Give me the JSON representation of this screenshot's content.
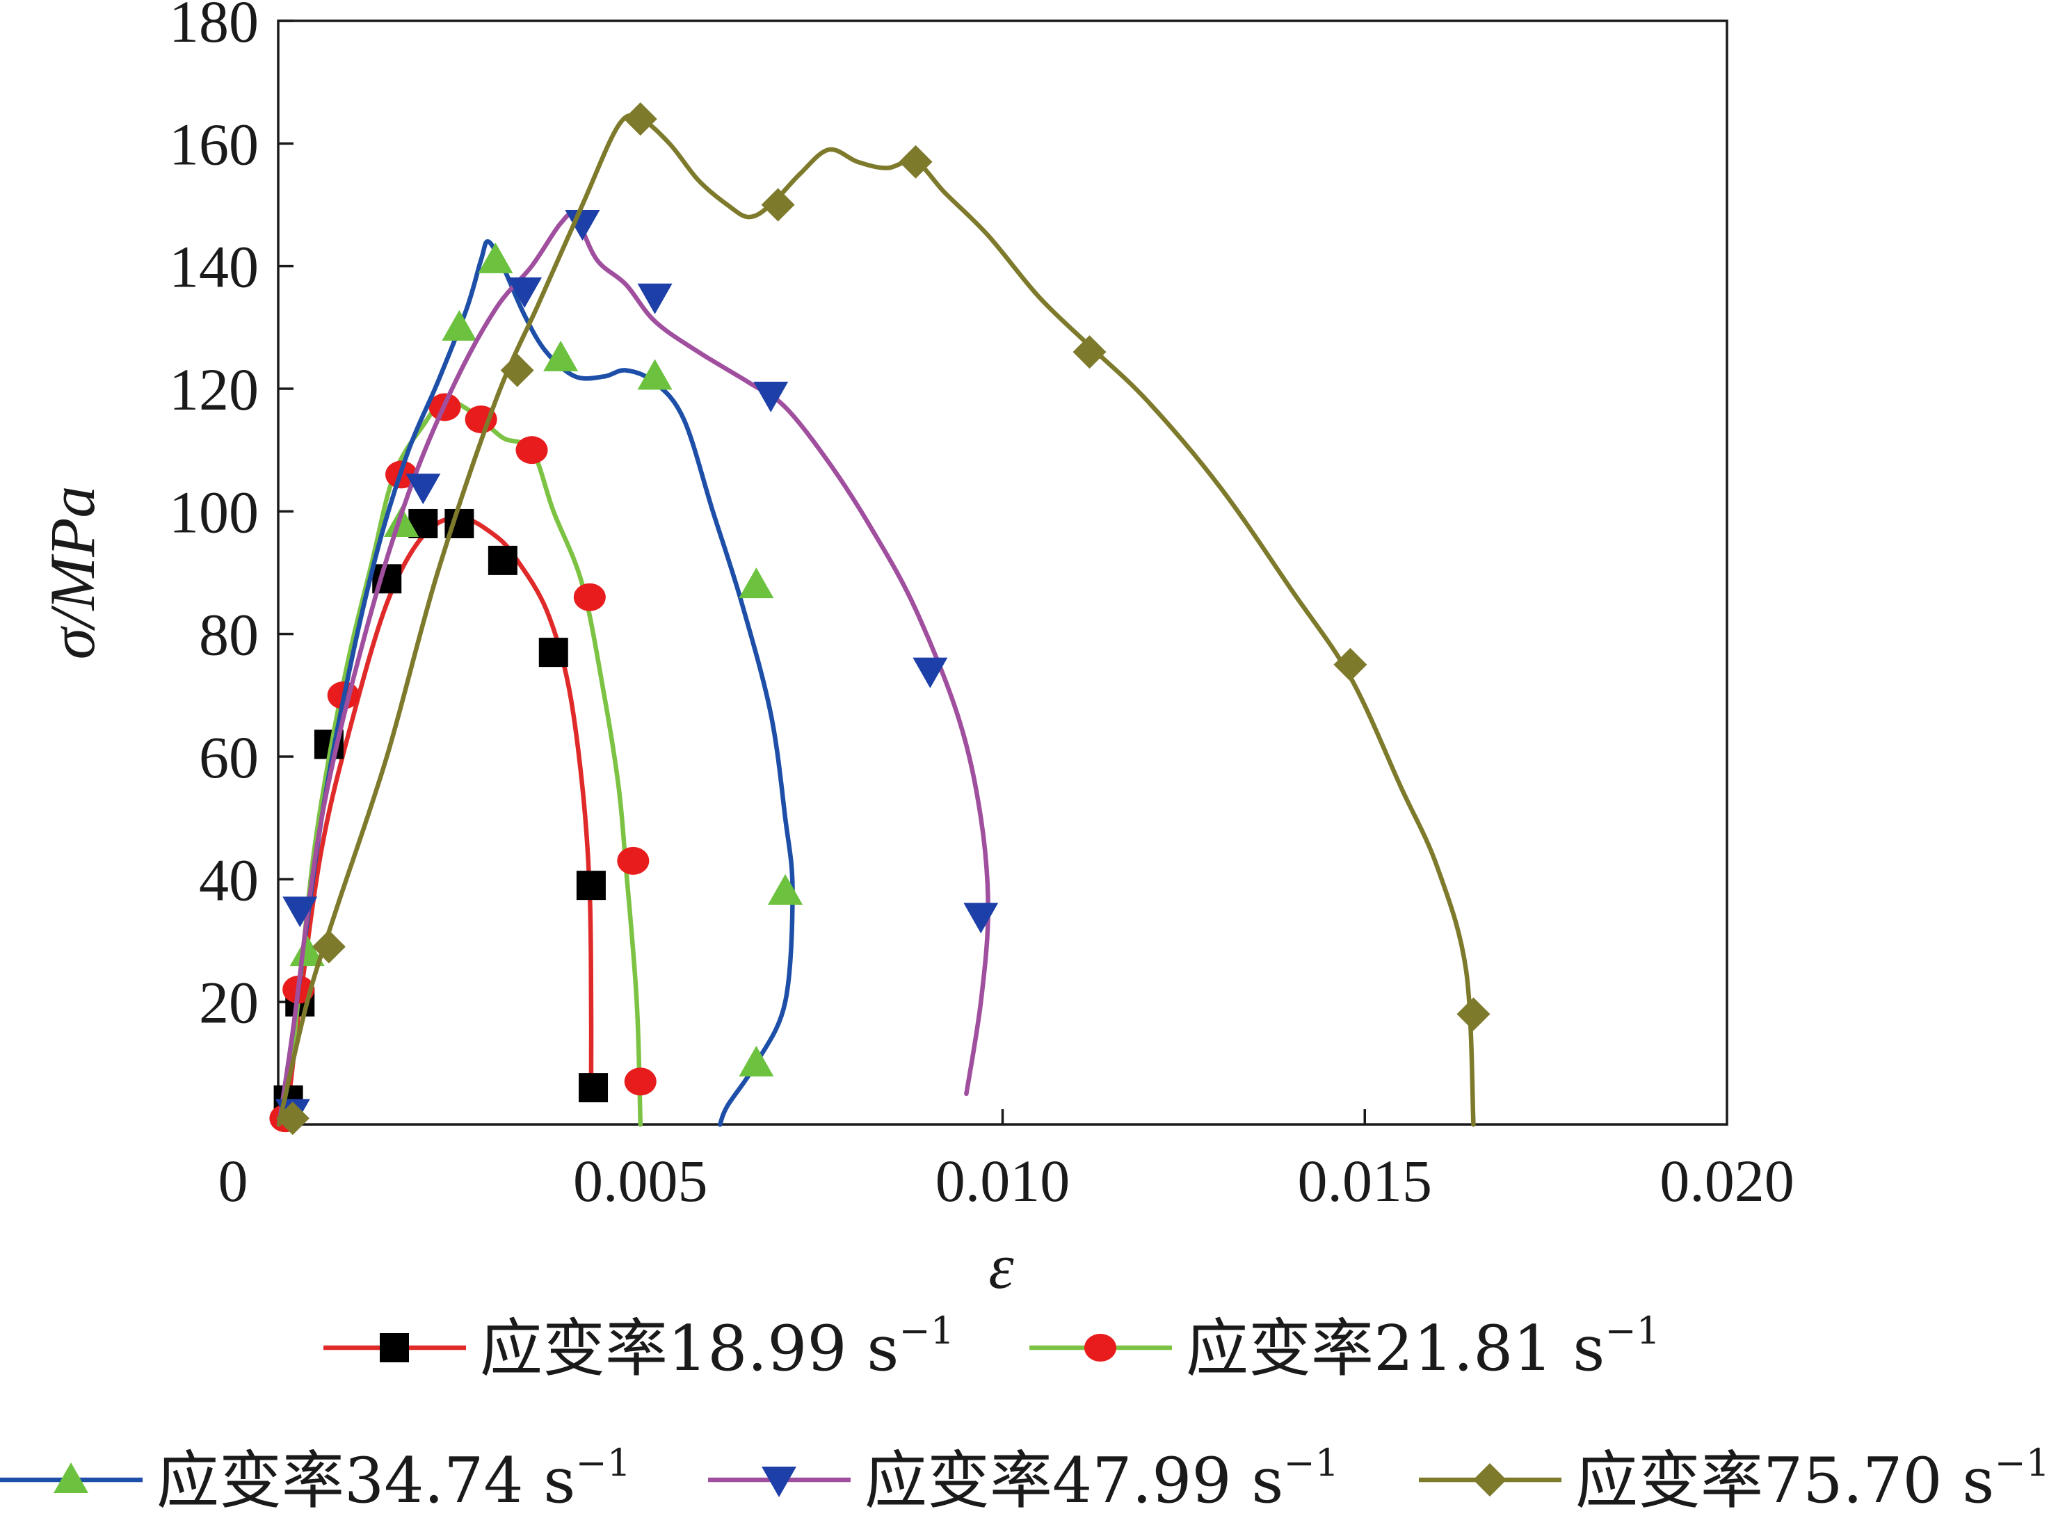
{
  "chart_data": {
    "type": "line",
    "title": "",
    "xlabel": "ε",
    "ylabel": "σ/MPa",
    "xlim": [
      0,
      0.02
    ],
    "ylim": [
      0,
      180
    ],
    "x_ticks": [
      {
        "value": 0,
        "label": "0"
      },
      {
        "value": 0.005,
        "label": "0.005"
      },
      {
        "value": 0.01,
        "label": "0.010"
      },
      {
        "value": 0.015,
        "label": "0.015"
      },
      {
        "value": 0.02,
        "label": "0.020"
      }
    ],
    "y_ticks": [
      {
        "value": 20,
        "label": "20"
      },
      {
        "value": 40,
        "label": "40"
      },
      {
        "value": 60,
        "label": "60"
      },
      {
        "value": 80,
        "label": "80"
      },
      {
        "value": 100,
        "label": "100"
      },
      {
        "value": 120,
        "label": "120"
      },
      {
        "value": 140,
        "label": "140"
      },
      {
        "value": 160,
        "label": "160"
      },
      {
        "value": 180,
        "label": "180"
      }
    ],
    "grid": false,
    "legend_position": "bottom",
    "series": [
      {
        "name": "应变率18.99 s⁻¹",
        "label_main": "应变率18.99 s",
        "label_sup": "−1",
        "line_color": "#e02a2a",
        "marker": "square",
        "marker_color": "#000000",
        "curve": [
          [
            1e-05,
            0
          ],
          [
            0.00015,
            5
          ],
          [
            0.0003,
            20
          ],
          [
            0.0006,
            45
          ],
          [
            0.001,
            65
          ],
          [
            0.0015,
            85
          ],
          [
            0.002,
            96
          ],
          [
            0.0025,
            99
          ],
          [
            0.003,
            96
          ],
          [
            0.0033,
            92
          ],
          [
            0.0037,
            84
          ],
          [
            0.004,
            72
          ],
          [
            0.0042,
            55
          ],
          [
            0.0043,
            38
          ],
          [
            0.00432,
            20
          ],
          [
            0.00432,
            5
          ]
        ],
        "markers": [
          [
            0.00014,
            4
          ],
          [
            0.0003,
            20
          ],
          [
            0.0007,
            62
          ],
          [
            0.0015,
            89
          ],
          [
            0.002,
            98
          ],
          [
            0.0025,
            98
          ],
          [
            0.0031,
            92
          ],
          [
            0.0038,
            77
          ],
          [
            0.00432,
            39
          ],
          [
            0.00435,
            6
          ]
        ]
      },
      {
        "name": "应变率21.81 s⁻¹",
        "label_main": "应变率21.81 s",
        "label_sup": "−1",
        "line_color": "#7cc243",
        "marker": "circle",
        "marker_color": "#e81c1c",
        "curve": [
          [
            1e-05,
            0
          ],
          [
            0.0002,
            12
          ],
          [
            0.0005,
            45
          ],
          [
            0.0009,
            72
          ],
          [
            0.0013,
            92
          ],
          [
            0.0016,
            106
          ],
          [
            0.002,
            114
          ],
          [
            0.0023,
            118
          ],
          [
            0.0027,
            116
          ],
          [
            0.0031,
            112
          ],
          [
            0.0035,
            110
          ],
          [
            0.0038,
            100
          ],
          [
            0.0042,
            88
          ],
          [
            0.0045,
            70
          ],
          [
            0.0047,
            55
          ],
          [
            0.0048,
            42
          ],
          [
            0.00495,
            20
          ],
          [
            0.005,
            0
          ]
        ],
        "markers": [
          [
            0.0001,
            1
          ],
          [
            0.00028,
            22
          ],
          [
            0.0009,
            70
          ],
          [
            0.0017,
            106
          ],
          [
            0.0023,
            117
          ],
          [
            0.0028,
            115
          ],
          [
            0.0035,
            110
          ],
          [
            0.0043,
            86
          ],
          [
            0.0049,
            43
          ],
          [
            0.005,
            7
          ]
        ]
      },
      {
        "name": "应变率34.74 s⁻¹",
        "label_main": "应变率34.74 s",
        "label_sup": "−1",
        "line_color": "#1e4fa8",
        "marker": "triangle-up",
        "marker_color": "#6cc23e",
        "curve": [
          [
            1e-05,
            0
          ],
          [
            0.0002,
            15
          ],
          [
            0.0006,
            50
          ],
          [
            0.001,
            75
          ],
          [
            0.0014,
            95
          ],
          [
            0.0018,
            110
          ],
          [
            0.0022,
            121
          ],
          [
            0.0026,
            133
          ],
          [
            0.0028,
            141
          ],
          [
            0.0029,
            144
          ],
          [
            0.0031,
            140
          ],
          [
            0.0034,
            132
          ],
          [
            0.0037,
            126
          ],
          [
            0.0041,
            122
          ],
          [
            0.0045,
            122
          ],
          [
            0.0048,
            123
          ],
          [
            0.0052,
            121
          ],
          [
            0.0056,
            115
          ],
          [
            0.006,
            100
          ],
          [
            0.0064,
            85
          ],
          [
            0.0068,
            67
          ],
          [
            0.007,
            50
          ],
          [
            0.0071,
            38
          ],
          [
            0.007,
            20
          ],
          [
            0.0066,
            10
          ],
          [
            0.0062,
            3
          ],
          [
            0.0061,
            0
          ]
        ],
        "markers": [
          [
            0.0004,
            28
          ],
          [
            0.0017,
            98
          ],
          [
            0.0025,
            130
          ],
          [
            0.003,
            141
          ],
          [
            0.0039,
            125
          ],
          [
            0.0052,
            122
          ],
          [
            0.0066,
            88
          ],
          [
            0.007,
            38
          ],
          [
            0.0066,
            10
          ]
        ]
      },
      {
        "name": "应变率47.99 s⁻¹",
        "label_main": "应变率47.99 s",
        "label_sup": "−1",
        "line_color": "#a04f9e",
        "marker": "triangle-down",
        "marker_color": "#1d3fa8",
        "curve": [
          [
            1e-05,
            0
          ],
          [
            0.0002,
            15
          ],
          [
            0.0006,
            50
          ],
          [
            0.0012,
            80
          ],
          [
            0.0018,
            103
          ],
          [
            0.0024,
            120
          ],
          [
            0.003,
            133
          ],
          [
            0.0035,
            140
          ],
          [
            0.0039,
            147
          ],
          [
            0.0041,
            148
          ],
          [
            0.0044,
            141
          ],
          [
            0.0048,
            137
          ],
          [
            0.0052,
            131
          ],
          [
            0.0058,
            126
          ],
          [
            0.0065,
            121
          ],
          [
            0.007,
            117
          ],
          [
            0.0076,
            108
          ],
          [
            0.0082,
            97
          ],
          [
            0.0088,
            84
          ],
          [
            0.0094,
            66
          ],
          [
            0.0097,
            50
          ],
          [
            0.0098,
            35
          ],
          [
            0.0097,
            20
          ],
          [
            0.0095,
            5
          ]
        ],
        "markers": [
          [
            0.0003,
            35
          ],
          [
            0.0002,
            2
          ],
          [
            0.002,
            104
          ],
          [
            0.0034,
            136
          ],
          [
            0.0042,
            147
          ],
          [
            0.0052,
            135
          ],
          [
            0.0068,
            119
          ],
          [
            0.009,
            74
          ],
          [
            0.0097,
            34
          ]
        ]
      },
      {
        "name": "应变率75.70 s⁻¹",
        "label_main": "应变率75.70 s",
        "label_sup": "−1",
        "line_color": "#7e7a2c",
        "marker": "diamond",
        "marker_color": "#7e7a2c",
        "curve": [
          [
            1e-05,
            0
          ],
          [
            0.0004,
            20
          ],
          [
            0.0008,
            35
          ],
          [
            0.0015,
            60
          ],
          [
            0.0022,
            90
          ],
          [
            0.003,
            118
          ],
          [
            0.0036,
            134
          ],
          [
            0.0042,
            150
          ],
          [
            0.0047,
            163
          ],
          [
            0.005,
            164
          ],
          [
            0.0054,
            160
          ],
          [
            0.0058,
            154
          ],
          [
            0.0062,
            150
          ],
          [
            0.0065,
            148
          ],
          [
            0.0068,
            150
          ],
          [
            0.0072,
            155
          ],
          [
            0.0076,
            159
          ],
          [
            0.008,
            157
          ],
          [
            0.0084,
            156
          ],
          [
            0.0088,
            157
          ],
          [
            0.0092,
            152
          ],
          [
            0.0098,
            145
          ],
          [
            0.0105,
            135
          ],
          [
            0.0112,
            127
          ],
          [
            0.012,
            118
          ],
          [
            0.013,
            104
          ],
          [
            0.014,
            87
          ],
          [
            0.0148,
            73
          ],
          [
            0.0155,
            55
          ],
          [
            0.016,
            42
          ],
          [
            0.0164,
            25
          ],
          [
            0.0165,
            0
          ]
        ],
        "markers": [
          [
            0.0002,
            1
          ],
          [
            0.0007,
            29
          ],
          [
            0.0033,
            123
          ],
          [
            0.005,
            164
          ],
          [
            0.0069,
            150
          ],
          [
            0.0088,
            157
          ],
          [
            0.0112,
            126
          ],
          [
            0.0148,
            75
          ],
          [
            0.0165,
            18
          ]
        ]
      }
    ]
  }
}
